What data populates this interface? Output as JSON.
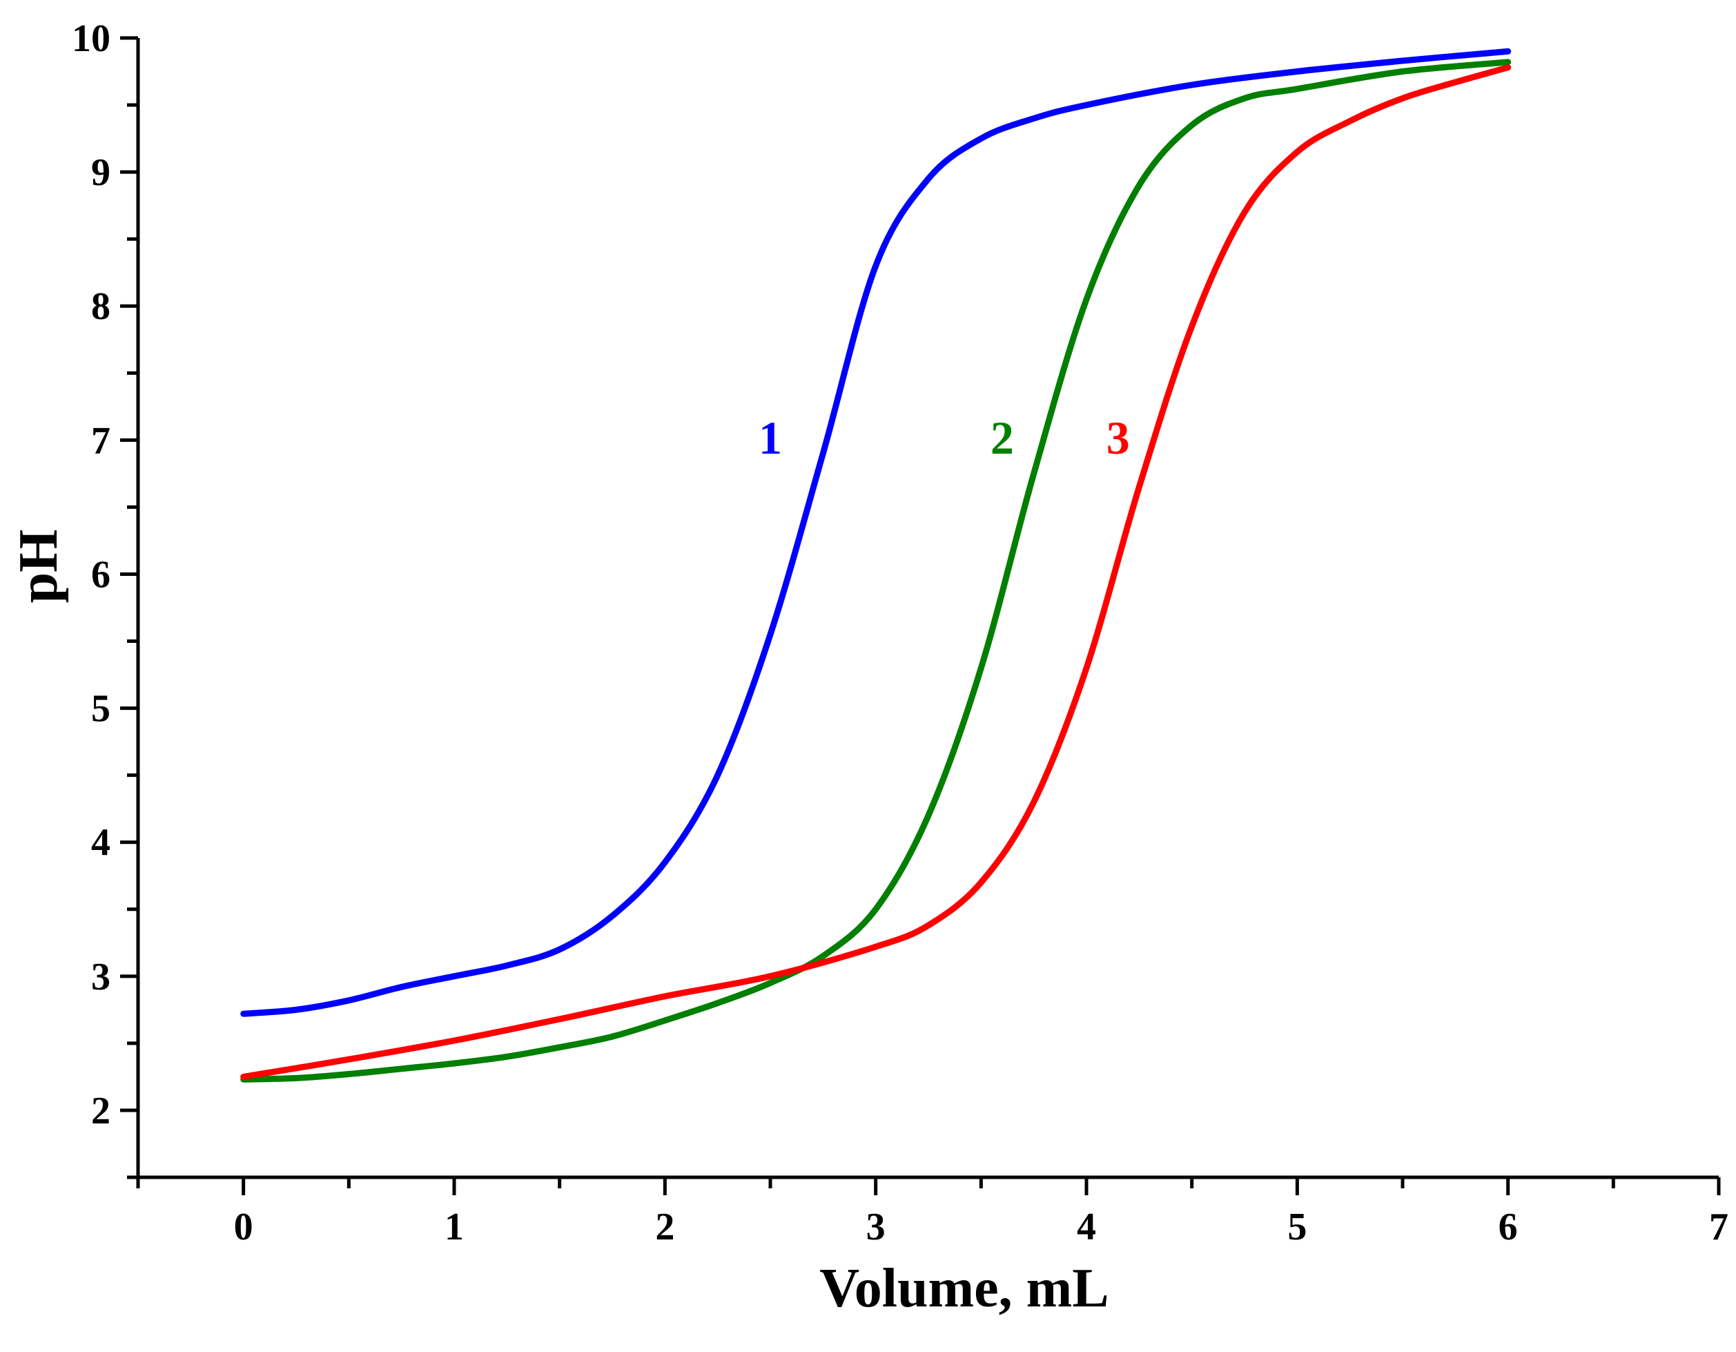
{
  "chart_data": {
    "type": "line",
    "title": "",
    "xlabel": "Volume, mL",
    "ylabel": "pH",
    "xlim": [
      -0.5,
      7
    ],
    "ylim": [
      1.5,
      10
    ],
    "xticks": [
      "0",
      "1",
      "2",
      "3",
      "4",
      "5",
      "6",
      "7"
    ],
    "yticks": [
      "2",
      "3",
      "4",
      "5",
      "6",
      "7",
      "8",
      "9",
      "10"
    ],
    "grid": false,
    "series": [
      {
        "name": "1",
        "label": "1",
        "color": "#0000ff",
        "label_at": [
          2.5,
          6.9
        ],
        "x": [
          0,
          0.25,
          0.5,
          0.75,
          1.0,
          1.25,
          1.5,
          1.75,
          2.0,
          2.25,
          2.5,
          2.75,
          3.0,
          3.25,
          3.5,
          3.75,
          4.0,
          4.5,
          5.0,
          5.5,
          6.0
        ],
        "y": [
          2.72,
          2.75,
          2.82,
          2.92,
          3.0,
          3.08,
          3.2,
          3.45,
          3.85,
          4.5,
          5.55,
          6.9,
          8.3,
          8.95,
          9.25,
          9.4,
          9.5,
          9.65,
          9.75,
          9.83,
          9.9
        ]
      },
      {
        "name": "2",
        "label": "2",
        "color": "#007f00",
        "label_at": [
          3.6,
          6.9
        ],
        "x": [
          0,
          0.25,
          0.5,
          0.75,
          1.0,
          1.25,
          1.5,
          1.75,
          2.0,
          2.25,
          2.5,
          2.75,
          3.0,
          3.25,
          3.5,
          3.75,
          4.0,
          4.25,
          4.5,
          4.75,
          5.0,
          5.5,
          6.0
        ],
        "y": [
          2.23,
          2.24,
          2.27,
          2.31,
          2.35,
          2.4,
          2.47,
          2.55,
          2.67,
          2.8,
          2.95,
          3.15,
          3.5,
          4.2,
          5.3,
          6.75,
          8.05,
          8.9,
          9.35,
          9.55,
          9.62,
          9.75,
          9.82
        ]
      },
      {
        "name": "3",
        "label": "3",
        "color": "#ff0000",
        "label_at": [
          4.15,
          6.9
        ],
        "x": [
          0,
          0.5,
          1.0,
          1.5,
          2.0,
          2.5,
          3.0,
          3.25,
          3.5,
          3.75,
          4.0,
          4.25,
          4.5,
          4.75,
          5.0,
          5.25,
          5.5,
          5.75,
          6.0
        ],
        "y": [
          2.25,
          2.38,
          2.52,
          2.68,
          2.85,
          3.0,
          3.22,
          3.38,
          3.7,
          4.3,
          5.3,
          6.65,
          7.85,
          8.7,
          9.15,
          9.38,
          9.55,
          9.67,
          9.78
        ]
      }
    ]
  }
}
